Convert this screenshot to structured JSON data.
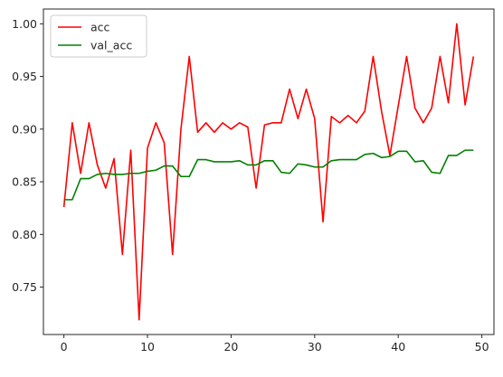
{
  "chart_data": {
    "type": "line",
    "title": "",
    "xlabel": "",
    "ylabel": "",
    "xlim": [
      -2.45,
      51.45
    ],
    "ylim": [
      0.705,
      1.014
    ],
    "xticks": [
      0,
      10,
      20,
      30,
      40,
      50
    ],
    "yticks": [
      0.75,
      0.8,
      0.85,
      0.9,
      0.95,
      1.0
    ],
    "ytick_labels": [
      "0.75",
      "0.80",
      "0.85",
      "0.90",
      "0.95",
      "1.00"
    ],
    "xtick_labels": [
      "0",
      "10",
      "20",
      "30",
      "40",
      "50"
    ],
    "grid": false,
    "legend_position": "top-left",
    "x": [
      0,
      1,
      2,
      3,
      4,
      5,
      6,
      7,
      8,
      9,
      10,
      11,
      12,
      13,
      14,
      15,
      16,
      17,
      18,
      19,
      20,
      21,
      22,
      23,
      24,
      25,
      26,
      27,
      28,
      29,
      30,
      31,
      32,
      33,
      34,
      35,
      36,
      37,
      38,
      39,
      40,
      41,
      42,
      43,
      44,
      45,
      46,
      47,
      48,
      49
    ],
    "series": [
      {
        "name": "acc",
        "color": "#ff0000",
        "values": [
          0.826,
          0.906,
          0.858,
          0.906,
          0.866,
          0.844,
          0.872,
          0.781,
          0.88,
          0.719,
          0.882,
          0.906,
          0.887,
          0.781,
          0.9,
          0.969,
          0.897,
          0.906,
          0.897,
          0.906,
          0.9,
          0.906,
          0.902,
          0.844,
          0.904,
          0.906,
          0.906,
          0.938,
          0.91,
          0.938,
          0.91,
          0.812,
          0.912,
          0.906,
          0.913,
          0.906,
          0.917,
          0.969,
          0.917,
          0.875,
          0.922,
          0.969,
          0.92,
          0.906,
          0.92,
          0.969,
          0.925,
          1.0,
          0.923,
          0.969
        ]
      },
      {
        "name": "val_acc",
        "color": "#008000",
        "values": [
          0.833,
          0.833,
          0.853,
          0.853,
          0.857,
          0.858,
          0.857,
          0.857,
          0.858,
          0.858,
          0.86,
          0.861,
          0.865,
          0.865,
          0.855,
          0.855,
          0.871,
          0.871,
          0.869,
          0.869,
          0.869,
          0.87,
          0.866,
          0.866,
          0.87,
          0.87,
          0.859,
          0.858,
          0.867,
          0.866,
          0.864,
          0.864,
          0.87,
          0.871,
          0.871,
          0.871,
          0.876,
          0.877,
          0.873,
          0.874,
          0.879,
          0.879,
          0.869,
          0.87,
          0.859,
          0.858,
          0.875,
          0.875,
          0.88,
          0.88
        ]
      }
    ]
  }
}
